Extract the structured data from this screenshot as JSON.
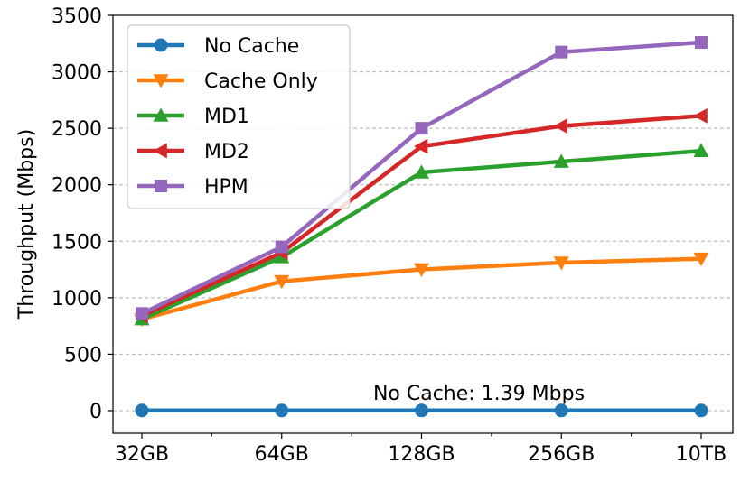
{
  "chart_data": {
    "type": "line",
    "categories": [
      "32GB",
      "64GB",
      "128GB",
      "256GB",
      "10TB"
    ],
    "xlabel": "",
    "ylabel": "Throughput (Mbps)",
    "ylim": [
      -200,
      3500
    ],
    "yticks": [
      0,
      500,
      1000,
      1500,
      2000,
      2500,
      3000,
      3500
    ],
    "grid": "horizontal dashed",
    "legend": "top-left",
    "annotation": "No Cache: 1.39 Mbps",
    "series": [
      {
        "name": "No Cache",
        "color": "#1f77b4",
        "marker": "circle",
        "values": [
          1.39,
          1.39,
          1.39,
          1.39,
          1.39
        ]
      },
      {
        "name": "Cache Only",
        "color": "#ff7f0e",
        "marker": "triangle-down",
        "values": [
          810,
          1145,
          1250,
          1310,
          1345
        ]
      },
      {
        "name": "MD1",
        "color": "#2ca02c",
        "marker": "triangle-up",
        "values": [
          810,
          1360,
          2110,
          2205,
          2300
        ]
      },
      {
        "name": "MD2",
        "color": "#d62728",
        "marker": "triangle-left",
        "values": [
          840,
          1400,
          2340,
          2520,
          2610
        ]
      },
      {
        "name": "HPM",
        "color": "#9467bd",
        "marker": "square",
        "values": [
          860,
          1450,
          2500,
          3175,
          3260
        ]
      }
    ]
  }
}
